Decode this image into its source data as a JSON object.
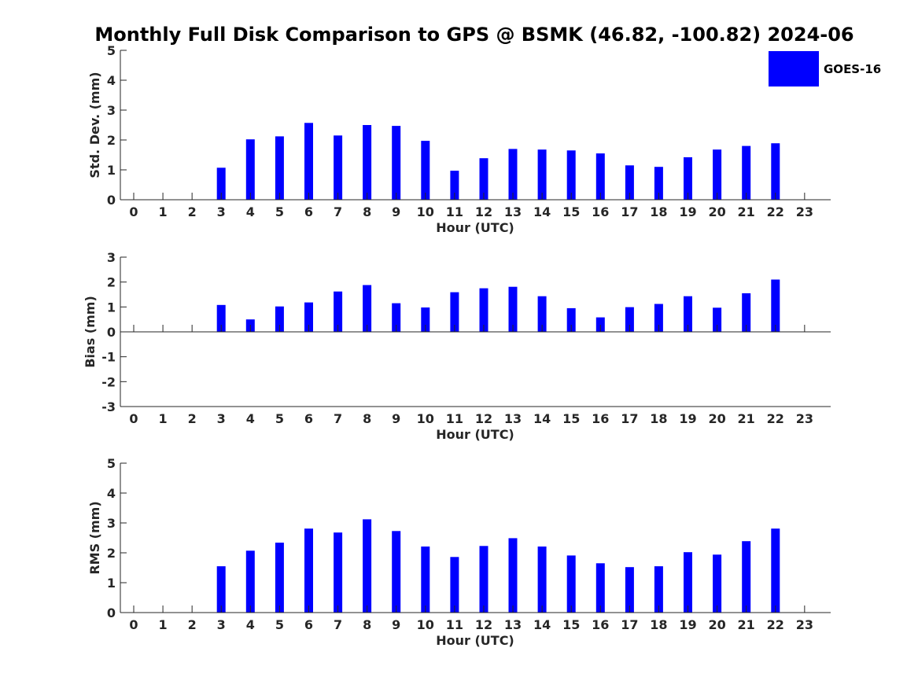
{
  "title": "Monthly Full Disk Comparison to GPS @ BSMK (46.82, -100.82) 2024-06",
  "legend": {
    "label": "GOES-16",
    "color": "#0000ff",
    "position": "top-right"
  },
  "chart_data": [
    {
      "type": "bar",
      "id": "stddev",
      "xlabel": "Hour (UTC)",
      "ylabel": "Std. Dev. (mm)",
      "categories": [
        0,
        1,
        2,
        3,
        4,
        5,
        6,
        7,
        8,
        9,
        10,
        11,
        12,
        13,
        14,
        15,
        16,
        17,
        18,
        19,
        20,
        21,
        22,
        23
      ],
      "series": [
        {
          "name": "GOES-16",
          "values": [
            null,
            null,
            null,
            1.07,
            2.02,
            2.12,
            2.57,
            2.15,
            2.5,
            2.47,
            1.97,
            0.97,
            1.39,
            1.7,
            1.68,
            1.65,
            1.55,
            1.15,
            1.1,
            1.42,
            1.68,
            1.8,
            1.89,
            null
          ]
        }
      ],
      "ylim": [
        0,
        5
      ],
      "yticks": [
        0,
        1,
        2,
        3,
        4,
        5
      ],
      "color": "#0000ff"
    },
    {
      "type": "bar",
      "id": "bias",
      "xlabel": "Hour (UTC)",
      "ylabel": "Bias (mm)",
      "categories": [
        0,
        1,
        2,
        3,
        4,
        5,
        6,
        7,
        8,
        9,
        10,
        11,
        12,
        13,
        14,
        15,
        16,
        17,
        18,
        19,
        20,
        21,
        22,
        23
      ],
      "series": [
        {
          "name": "GOES-16",
          "values": [
            null,
            null,
            null,
            1.08,
            0.5,
            1.02,
            1.18,
            1.62,
            1.88,
            1.15,
            0.98,
            1.59,
            1.75,
            1.81,
            1.43,
            0.95,
            0.58,
            0.99,
            1.12,
            1.43,
            0.97,
            1.55,
            2.1,
            null
          ]
        }
      ],
      "ylim": [
        -3,
        3
      ],
      "yticks": [
        -3,
        -2,
        -1,
        0,
        1,
        2,
        3
      ],
      "color": "#0000ff"
    },
    {
      "type": "bar",
      "id": "rms",
      "xlabel": "Hour (UTC)",
      "ylabel": "RMS (mm)",
      "categories": [
        0,
        1,
        2,
        3,
        4,
        5,
        6,
        7,
        8,
        9,
        10,
        11,
        12,
        13,
        14,
        15,
        16,
        17,
        18,
        19,
        20,
        21,
        22,
        23
      ],
      "series": [
        {
          "name": "GOES-16",
          "values": [
            null,
            null,
            null,
            1.55,
            2.07,
            2.34,
            2.81,
            2.68,
            3.12,
            2.73,
            2.21,
            1.86,
            2.23,
            2.49,
            2.21,
            1.91,
            1.65,
            1.52,
            1.55,
            2.02,
            1.94,
            2.39,
            2.81,
            null
          ]
        }
      ],
      "ylim": [
        0,
        5
      ],
      "yticks": [
        0,
        1,
        2,
        3,
        4,
        5
      ],
      "color": "#0000ff"
    }
  ]
}
